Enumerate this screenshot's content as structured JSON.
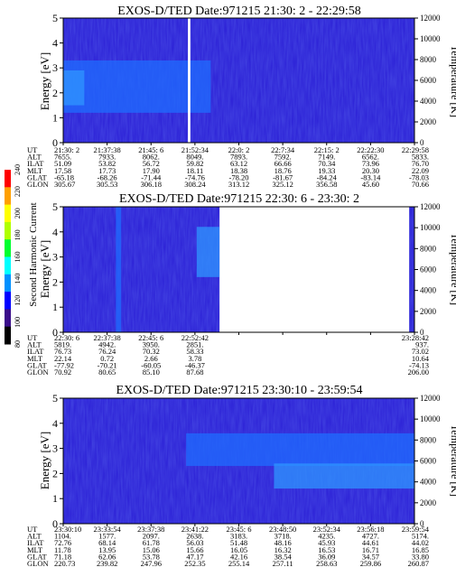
{
  "chart_data": [
    {
      "type": "heatmap",
      "title": "EXOS-D/TED  Date:971215  21:30: 2 - 22:29:58",
      "ylabel": "Energy [eV]",
      "ylabel_right": "Temperature [K]",
      "ylim": [
        0,
        5
      ],
      "yticks": [
        "0",
        "1",
        "2",
        "3",
        "4",
        "5"
      ],
      "ylim_right": [
        0,
        12000
      ],
      "yticks_right": [
        "0",
        "2000",
        "4000",
        "6000",
        "8000",
        "10000",
        "12000"
      ],
      "row_labels": [
        "UT",
        "ALT",
        "ILAT",
        "MLT",
        "GLAT",
        "GLON"
      ],
      "columns": [
        [
          "21:30: 2",
          "7655.",
          "51.09",
          "17.58",
          "-65.18",
          "305.67"
        ],
        [
          "21:37:38",
          "7933.",
          "53.82",
          "17.73",
          "-68.26",
          "305.53"
        ],
        [
          "21:45: 6",
          "8062.",
          "56.72",
          "17.90",
          "-71.44",
          "306.18"
        ],
        [
          "21:52:34",
          "8049.",
          "59.82",
          "18.11",
          "-74.76",
          "308.24"
        ],
        [
          "22:0: 2",
          "7893.",
          "63.12",
          "18.38",
          "-78.20",
          "313.12"
        ],
        [
          "22:7:34",
          "7592.",
          "66.66",
          "18.76",
          "-81.67",
          "325.12"
        ],
        [
          "22:15: 2",
          "7149.",
          "70.34",
          "19.33",
          "-84.24",
          "356.58"
        ],
        [
          "22:22:30",
          "6562.",
          "73.96",
          "20.30",
          "-83.14",
          "45.60"
        ],
        [
          "22:29:58",
          "5833.",
          "76.70",
          "22.09",
          "-78.03",
          "70.66"
        ]
      ],
      "features": [
        {
          "t0": 0.0,
          "t1": 0.42,
          "e0": 1.2,
          "e1": 3.3,
          "level": "enhanced"
        },
        {
          "t0": 0.0,
          "t1": 0.06,
          "e0": 1.5,
          "e1": 2.9,
          "level": "strong"
        },
        {
          "t0": 0.355,
          "t1": 0.362,
          "e0": 0,
          "e1": 5,
          "level": "gap"
        }
      ]
    },
    {
      "type": "heatmap",
      "title": "EXOS-D/TED  Date:971215  22:30: 6 - 23:30: 2",
      "ylabel": "Energy [eV]",
      "ylabel_right": "Temperature [K]",
      "ylim": [
        0,
        5
      ],
      "yticks": [
        "0",
        "1",
        "2",
        "3",
        "4",
        "5"
      ],
      "ylim_right": [
        0,
        12000
      ],
      "yticks_right": [
        "0",
        "2000",
        "4000",
        "6000",
        "8000",
        "10000",
        "12000"
      ],
      "row_labels": [
        "UT",
        "ALT",
        "ILAT",
        "MLT",
        "GLAT",
        "GLON"
      ],
      "columns": [
        [
          "22:30: 6",
          "5819.",
          "76.73",
          "22.14",
          "-77.92",
          "70.92"
        ],
        [
          "22:37:38",
          "4942.",
          "76.24",
          "0.72",
          "-70.21",
          "80.65"
        ],
        [
          "22:45: 6",
          "3950.",
          "70.32",
          "2.66",
          "-60.05",
          "85.10"
        ],
        [
          "22:52:42",
          "2851.",
          "58.33",
          "3.78",
          "-46.37",
          "87.68"
        ],
        [
          "",
          "",
          "",
          "",
          "",
          ""
        ],
        [
          "",
          "",
          "",
          "",
          "",
          ""
        ],
        [
          "",
          "",
          "",
          "",
          "",
          ""
        ],
        [
          "",
          "",
          "",
          "",
          "",
          ""
        ],
        [
          "23:28:42",
          "937.",
          "73.02",
          "10.64",
          "-74.13",
          "206.00"
        ]
      ],
      "data_coverage": [
        [
          0.0,
          0.445
        ],
        [
          0.985,
          1.0
        ]
      ],
      "features": [
        {
          "t0": 0.15,
          "t1": 0.165,
          "e0": 0,
          "e1": 5,
          "level": "enhanced"
        },
        {
          "t0": 0.38,
          "t1": 0.445,
          "e0": 2.2,
          "e1": 4.2,
          "level": "strong"
        }
      ]
    },
    {
      "type": "heatmap",
      "title": "EXOS-D/TED  Date:971215  23:30:10 - 23:59:54",
      "ylabel": "Energy [eV]",
      "ylabel_right": "Temperature [K]",
      "ylim": [
        0,
        5
      ],
      "yticks": [
        "0",
        "1",
        "2",
        "3",
        "4",
        "5"
      ],
      "ylim_right": [
        0,
        12000
      ],
      "yticks_right": [
        "0",
        "2000",
        "4000",
        "6000",
        "8000",
        "10000",
        "12000"
      ],
      "row_labels": [
        "UT",
        "ALT",
        "ILAT",
        "MLT",
        "GLAT",
        "GLON"
      ],
      "columns": [
        [
          "23:30:10",
          "1104.",
          "72.76",
          "11.78",
          "71.18",
          "220.73"
        ],
        [
          "23:33:54",
          "1577.",
          "68.14",
          "13.95",
          "62.06",
          "239.82"
        ],
        [
          "23:37:38",
          "2097.",
          "61.78",
          "15.06",
          "53.78",
          "247.96"
        ],
        [
          "23:41:22",
          "2638.",
          "56.03",
          "15.66",
          "47.17",
          "252.35"
        ],
        [
          "23:45: 6",
          "3183.",
          "51.48",
          "16.05",
          "42.16",
          "255.14"
        ],
        [
          "23:48:50",
          "3718.",
          "48.16",
          "16.32",
          "38.54",
          "257.11"
        ],
        [
          "23:52:34",
          "4235.",
          "45.93",
          "16.53",
          "36.09",
          "258.63"
        ],
        [
          "23:56:18",
          "4727.",
          "44.61",
          "16.71",
          "34.57",
          "259.86"
        ],
        [
          "23:59:54",
          "5174.",
          "44.02",
          "16.85",
          "33.80",
          "260.87"
        ]
      ],
      "features": [
        {
          "t0": 0.35,
          "t1": 1.0,
          "e0": 2.3,
          "e1": 3.6,
          "level": "enhanced"
        },
        {
          "t0": 0.6,
          "t1": 1.0,
          "e0": 1.4,
          "e1": 2.4,
          "level": "strong"
        }
      ]
    }
  ],
  "colorbar": {
    "label": "Second Harmonic Current",
    "ticks": [
      "80",
      "100",
      "120",
      "140",
      "160",
      "180",
      "200",
      "220",
      "240"
    ],
    "colors": [
      "#000000",
      "#3a0d8a",
      "#0000ff",
      "#0090ff",
      "#00ffff",
      "#00ff30",
      "#b0ff00",
      "#ffff00",
      "#ffa000",
      "#ff0000"
    ]
  }
}
